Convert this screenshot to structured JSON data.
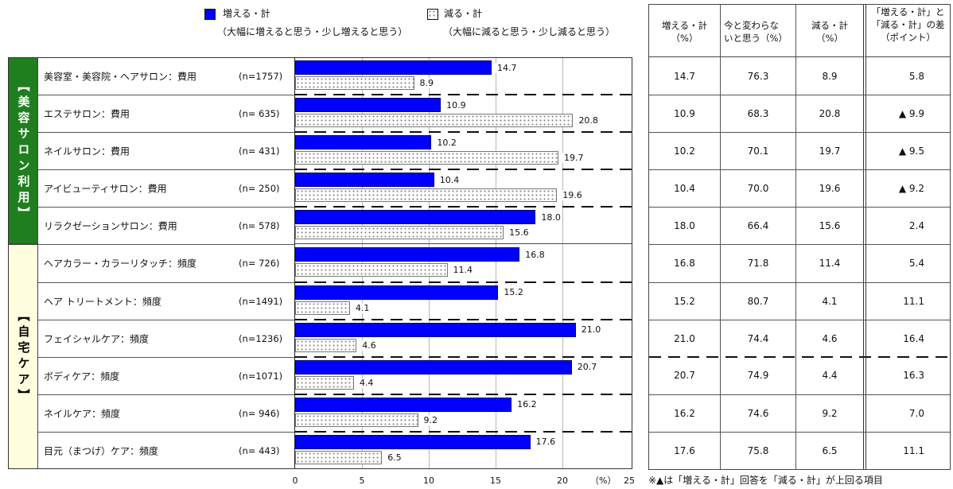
{
  "legend": {
    "increase_sub": "（大幅に増えると思う・少し増えると思う）",
    "decrease_sub": "（大幅に減ると思う・少し減ると思う）",
    "placement": "top"
  },
  "groups": [
    {
      "label": "【美容サロン利用】",
      "color": "#1f7f1f",
      "text_color": "#ffffff"
    },
    {
      "label": "【自宅ケア】",
      "color": "#ffffe0",
      "text_color": "#000000"
    }
  ],
  "chart_data": {
    "type": "bar",
    "orientation": "horizontal",
    "categories": [
      "美容室・美容院・ヘアサロン：費用",
      "エステサロン：費用",
      "ネイルサロン：費用",
      "アイビューティサロン：費用",
      "リラクゼーションサロン：費用",
      "ヘアカラー・カラーリタッチ：頻度",
      "ヘア トリートメント：頻度",
      "フェイシャルケア：頻度",
      "ボディケア：頻度",
      "ネイルケア：頻度",
      "目元（まつげ）ケア：頻度"
    ],
    "n": [
      "(n=1757)",
      "(n= 635)",
      "(n= 431)",
      "(n= 250)",
      "(n= 578)",
      "(n= 726)",
      "(n=1491)",
      "(n=1236)",
      "(n=1071)",
      "(n= 946)",
      "(n= 443)"
    ],
    "group": [
      0,
      0,
      0,
      0,
      0,
      1,
      1,
      1,
      1,
      1,
      1
    ],
    "series": [
      {
        "name": "増える・計",
        "values": [
          14.7,
          10.9,
          10.2,
          10.4,
          18.0,
          16.8,
          15.2,
          21.0,
          20.7,
          16.2,
          17.6
        ],
        "color": "#0000ff"
      },
      {
        "name": "減る・計",
        "values": [
          8.9,
          20.8,
          19.7,
          19.6,
          15.6,
          11.4,
          4.1,
          4.6,
          4.4,
          9.2,
          6.5
        ],
        "color": "#ffffff",
        "pattern_color": "#8a8a8a"
      }
    ],
    "xlim": [
      0,
      25
    ],
    "xticks": [
      "0",
      "5",
      "10",
      "15",
      "20",
      "25"
    ],
    "xunit": "（%）",
    "grid": "vertical"
  },
  "table": {
    "headers": [
      [
        "増える・計",
        "（%）"
      ],
      [
        "今と変わらな",
        "いと思う（%）"
      ],
      [
        "減る・計",
        "（%）"
      ],
      [
        "「増える・計」と",
        "「減る・計」の差",
        "（ポイント）"
      ]
    ],
    "rows": [
      [
        "14.7",
        "76.3",
        "8.9",
        "5.8"
      ],
      [
        "10.9",
        "68.3",
        "20.8",
        "▲ 9.9"
      ],
      [
        "10.2",
        "70.1",
        "19.7",
        "▲ 9.5"
      ],
      [
        "10.4",
        "70.0",
        "19.6",
        "▲ 9.2"
      ],
      [
        "18.0",
        "66.4",
        "15.6",
        "2.4"
      ],
      [
        "16.8",
        "71.8",
        "11.4",
        "5.4"
      ],
      [
        "15.2",
        "80.7",
        "4.1",
        "11.1"
      ],
      [
        "21.0",
        "74.4",
        "4.6",
        "16.4"
      ],
      [
        "20.7",
        "74.9",
        "4.4",
        "16.3"
      ],
      [
        "16.2",
        "74.6",
        "9.2",
        "7.0"
      ],
      [
        "17.6",
        "75.8",
        "6.5",
        "11.1"
      ]
    ]
  },
  "note": "※▲は「増える・計」回答を「減る・計」が上回る項目"
}
